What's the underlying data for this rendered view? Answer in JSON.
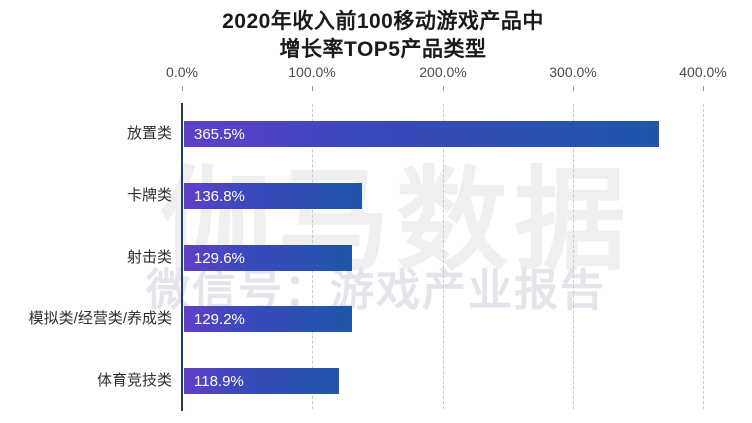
{
  "title": {
    "line1": "2020年收入前100移动游戏产品中",
    "line2": "增长率TOP5产品类型"
  },
  "watermark": {
    "brand": "伽马数据",
    "wechat": "微信号：游戏产业报告"
  },
  "chart_data": {
    "type": "bar",
    "orientation": "horizontal",
    "title": "2020年收入前100移动游戏产品中增长率TOP5产品类型",
    "categories": [
      "放置类",
      "卡牌类",
      "射击类",
      "模拟类/经营类/养成类",
      "体育竞技类"
    ],
    "values": [
      365.5,
      136.8,
      129.6,
      129.2,
      118.9
    ],
    "value_labels": [
      "365.5%",
      "136.8%",
      "129.6%",
      "129.2%",
      "118.9%"
    ],
    "x_ticks": [
      "0.0%",
      "100.0%",
      "200.0%",
      "300.0%",
      "400.0%"
    ],
    "xlim": [
      0,
      400
    ],
    "grid": "vertical-dashed",
    "legend": "none",
    "bar_gradient_start": "#6040c8",
    "bar_gradient_end": "#1e56aa",
    "axis_line_color": "#1e3e63",
    "gridline_color": "#c9c9c9"
  }
}
